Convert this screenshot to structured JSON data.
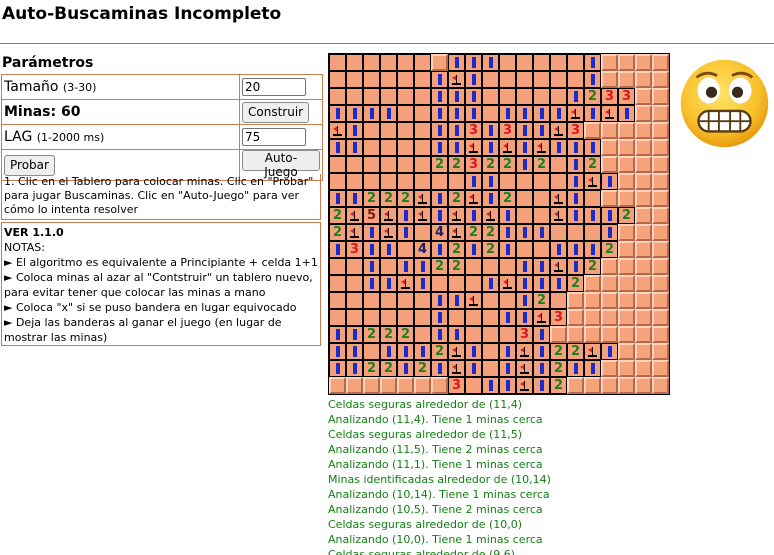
{
  "app": {
    "title": "Auto-Buscaminas Incompleto"
  },
  "params": {
    "heading": "Parámetros",
    "size_label": "Tamaño",
    "size_hint": "(3-30)",
    "size_value": "20",
    "mines_label": "Minas: 60",
    "build_button": "Construir",
    "lag_label": "LAG",
    "lag_hint": "(1-2000 ms)",
    "lag_value": "75",
    "test_button": "Probar",
    "auto_button": "Auto-Juego"
  },
  "instructions": "1. Clic en el Tablero para colocar minas. Clic en \"Probar\" para jugar Buscaminas. Clic en \"Auto-Juego\" para ver cómo lo intenta resolver",
  "notes": {
    "version": "VER 1.1.0",
    "header": "NOTAS:",
    "items": [
      "► El algoritmo es equivalente a Principiante + celda 1+1",
      "► Coloca minas al azar al \"Contstruir\" un tablero nuevo,",
      "para evitar tener que colocar las minas a mano",
      "► Coloca \"x\" si se puso bandera en lugar equivocado",
      "► Deja las banderas al ganar el juego (en lugar de",
      "mostrar las minas)"
    ]
  },
  "board": {
    "rows": [
      "......H111.....1HHHH",
      "......1F1......1HHHH",
      "......111.....1233HH",
      "1111..111.1111F1F1HH",
      "F1....1131311F3HHHHH",
      "11....11F1F1F111HHHH",
      "......2232212.12HHHH",
      "........11....1F1HHH",
      "11222F12F12..F1.HHHH",
      "2F5F1F1F1F1..F1112HH",
      "2F1F1.4F22111...1HHH",
      "1311.412121..1112HHH",
      "..1.1122...11F12HHHH",
      "..11F1...1F1112HHHHH",
      "......11F..12.HHHHHH",
      "......1...11F3HHHHHH",
      "11222.11...31HHHHHHH",
      "11.1112F1.1F122F1HHH",
      "1122121F1.1F1211HHHH",
      "HHHHHHH3.11F12HHHHHH"
    ]
  },
  "face": {
    "icon": "grimacing-face-icon"
  },
  "log": {
    "lines": [
      "Celdas seguras alrededor de (11,4)",
      "Analizando (11,4). Tiene 1 minas cerca",
      "Celdas seguras alrededor de (11,5)",
      "Analizando (11,5). Tiene 2 minas cerca",
      "Analizando (11,1). Tiene 1 minas cerca",
      "Minas identificadas alrededor de (10,14)",
      "Analizando (10,14). Tiene 1 minas cerca",
      "Analizando (10,5). Tiene 2 minas cerca",
      "Celdas seguras alrededor de (10,0)",
      "Analizando (10,0). Tiene 1 minas cerca",
      "Celdas seguras alrededor de (9,6)"
    ]
  },
  "colors": {
    "accent_border": "#c97b52",
    "cell_open": "#f4a07b",
    "num1": "#1a2ccc",
    "num2": "#1f7d1f",
    "num3": "#e0161b",
    "log_text": "#128012"
  }
}
